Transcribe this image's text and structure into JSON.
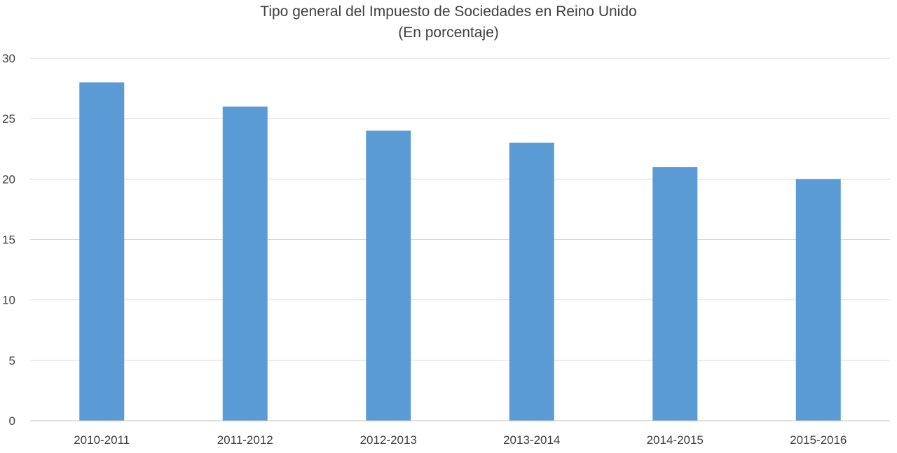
{
  "chart_data": {
    "type": "bar",
    "title": "Tipo general del Impuesto de Sociedades en Reino Unido",
    "subtitle": "(En porcentaje)",
    "categories": [
      "2010-2011",
      "2011-2012",
      "2012-2013",
      "2013-2014",
      "2014-2015",
      "2015-2016"
    ],
    "values": [
      28,
      26,
      24,
      23,
      21,
      20
    ],
    "xlabel": "",
    "ylabel": "",
    "ylim": [
      0,
      30
    ],
    "yticks": [
      0,
      5,
      10,
      15,
      20,
      25,
      30
    ],
    "grid": true,
    "legend": "none",
    "bar_color": "#5b9bd5"
  }
}
